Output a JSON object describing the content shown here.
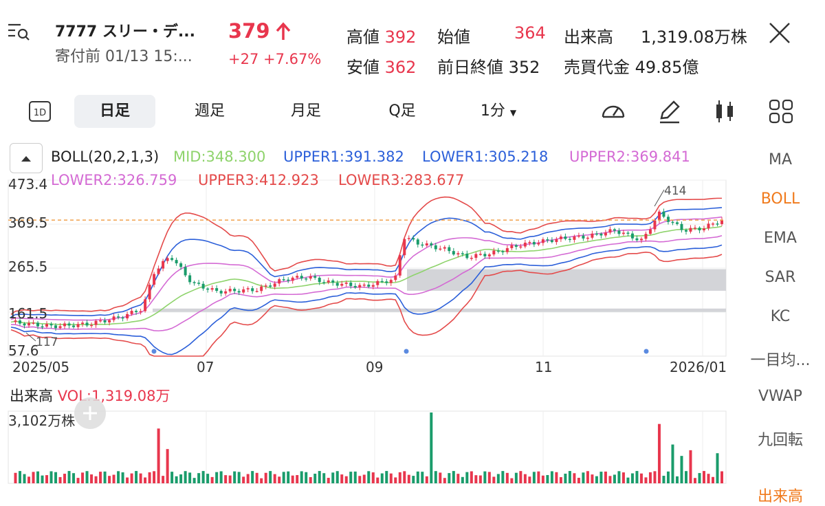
{
  "header": {
    "stock_name": "7777  スリー・デ...",
    "status": "寄付前  01/13 15:...",
    "price": "379",
    "change": "+27  +7.67%",
    "high_label": "高値",
    "high": "392",
    "open_label": "始値",
    "open": "364",
    "volume_label": "出来高",
    "volume": "1,319.08万株",
    "low_label": "安値",
    "low": "362",
    "prev_close_label": "前日終値",
    "prev_close": "352",
    "turnover_label": "売買代金",
    "turnover": "49.85億"
  },
  "tabs": {
    "d1": "1D",
    "day": "日足",
    "week": "週足",
    "month": "月足",
    "quarter": "Q足",
    "minute": "1分"
  },
  "indicator": {
    "name": "BOLL(20,2,1,3)",
    "mid": "MID:348.300",
    "upper1": "UPPER1:391.382",
    "lower1": "LOWER1:305.218",
    "upper2": "UPPER2:369.841",
    "lower2": "LOWER2:326.759",
    "upper3": "UPPER3:412.923",
    "lower3": "LOWER3:283.677",
    "colors": {
      "mid": "#8ed36b",
      "band1": "#2b5fd9",
      "band2": "#d46ad4",
      "band3": "#e44a4a",
      "up": "#e8364d",
      "down": "#1a9c6b"
    }
  },
  "sidebar": [
    "MA",
    "BOLL",
    "EMA",
    "SAR",
    "KC",
    "一目均...",
    "VWAP",
    "九回転",
    "出来高"
  ],
  "volume_panel": {
    "title": "出来高",
    "vol_text": "VOL:1,319.08万",
    "max_label": "3,102万株"
  },
  "chart_data": {
    "type": "candlestick",
    "y_ticks": [
      "473.4",
      "369.5",
      "265.5",
      "161.5",
      "57.6"
    ],
    "ylim": [
      57.6,
      473.4
    ],
    "x_ticks": [
      "2025/05",
      "07",
      "09",
      "11",
      "2026/01"
    ],
    "annotations": {
      "high_label": "414",
      "low_label": "117"
    },
    "reference_price": 379,
    "volume_max": 3102
  }
}
